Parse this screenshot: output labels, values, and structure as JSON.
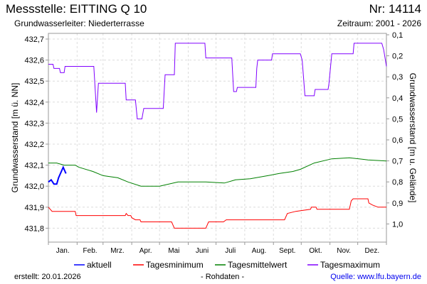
{
  "header": {
    "title": "Messstelle: EITTING Q 10",
    "number": "Nr: 14114",
    "aquifer": "Grundwasserleiter:   Niederterrasse",
    "period": "Zeitraum: 2001 - 2026"
  },
  "footer": {
    "created": "erstellt:  20.01.2026",
    "raw": "- Rohdaten -",
    "source": "Quelle: www.lfu.bayern.de"
  },
  "chart_data": {
    "type": "line",
    "title": "Messstelle: EITTING Q 10",
    "xlabel": "",
    "ylabel": "Grundwasserstand [m ü. NN]",
    "y2label": "Grundwasserstand [m u. Gelände]",
    "x_unit": "day of year",
    "xlim": [
      0,
      365
    ],
    "ylim": [
      431.73,
      432.73
    ],
    "y_ticks": [
      "432,7",
      "432,6",
      "432,5",
      "432,4",
      "432,3",
      "432,2",
      "432,1",
      "432,0",
      "431,9",
      "431,8"
    ],
    "y_tick_values": [
      432.7,
      432.6,
      432.5,
      432.4,
      432.3,
      432.2,
      432.1,
      432.0,
      431.9,
      431.8
    ],
    "y2_ticks": [
      "0,1",
      "0,2",
      "0,3",
      "0,4",
      "0,5",
      "0,6",
      "0,7",
      "0,8",
      "0,9",
      "1,0"
    ],
    "y2_tick_values": [
      0.1,
      0.2,
      0.3,
      0.4,
      0.5,
      0.6,
      0.7,
      0.8,
      0.9,
      1.0
    ],
    "y2_reference_level": 432.82,
    "months": [
      "Jan.",
      "Feb.",
      "Mrz.",
      "Apr.",
      "Mai",
      "Juni",
      "Juli",
      "Aug.",
      "Sept.",
      "Okt.",
      "Nov.",
      "Dez."
    ],
    "month_starts": [
      0,
      31,
      59,
      90,
      120,
      151,
      181,
      212,
      243,
      273,
      304,
      334,
      365
    ],
    "grid": true,
    "legend_position": "bottom",
    "series": [
      {
        "name": "aktuell",
        "color": "#0000ff",
        "width": 2,
        "points": [
          [
            0,
            432.02
          ],
          [
            3,
            432.03
          ],
          [
            6,
            432.01
          ],
          [
            9,
            432.01
          ],
          [
            11,
            432.04
          ],
          [
            12,
            432.05
          ],
          [
            14,
            432.07
          ],
          [
            15,
            432.08
          ],
          [
            16,
            432.09
          ],
          [
            18,
            432.07
          ],
          [
            19,
            432.06
          ]
        ]
      },
      {
        "name": "Tagesminimum",
        "color": "#ff0000",
        "width": 1,
        "points": [
          [
            0,
            431.9
          ],
          [
            4,
            431.88
          ],
          [
            29,
            431.88
          ],
          [
            30,
            431.86
          ],
          [
            83,
            431.86
          ],
          [
            84,
            431.87
          ],
          [
            86,
            431.86
          ],
          [
            89,
            431.86
          ],
          [
            90,
            431.85
          ],
          [
            94,
            431.84
          ],
          [
            99,
            431.84
          ],
          [
            100,
            431.83
          ],
          [
            133,
            431.83
          ],
          [
            136,
            431.8
          ],
          [
            170,
            431.8
          ],
          [
            173,
            431.83
          ],
          [
            189,
            431.83
          ],
          [
            192,
            431.84
          ],
          [
            255,
            431.84
          ],
          [
            258,
            431.87
          ],
          [
            267,
            431.88
          ],
          [
            283,
            431.89
          ],
          [
            284,
            431.9
          ],
          [
            289,
            431.9
          ],
          [
            290,
            431.89
          ],
          [
            325,
            431.89
          ],
          [
            327,
            431.93
          ],
          [
            329,
            431.94
          ],
          [
            345,
            431.94
          ],
          [
            346,
            431.92
          ],
          [
            350,
            431.91
          ],
          [
            356,
            431.9
          ],
          [
            365,
            431.9
          ]
        ]
      },
      {
        "name": "Tagesmittelwert",
        "color": "#008000",
        "width": 1,
        "points": [
          [
            0,
            432.11
          ],
          [
            9,
            432.11
          ],
          [
            17,
            432.1
          ],
          [
            29,
            432.1
          ],
          [
            33,
            432.09
          ],
          [
            48,
            432.07
          ],
          [
            59,
            432.05
          ],
          [
            75,
            432.04
          ],
          [
            86,
            432.02
          ],
          [
            100,
            432.0
          ],
          [
            120,
            432.0
          ],
          [
            140,
            432.02
          ],
          [
            160,
            432.02
          ],
          [
            170,
            432.02
          ],
          [
            190,
            432.015
          ],
          [
            202,
            432.03
          ],
          [
            218,
            432.035
          ],
          [
            237,
            432.05
          ],
          [
            249,
            432.06
          ],
          [
            264,
            432.07
          ],
          [
            272,
            432.08
          ],
          [
            287,
            432.11
          ],
          [
            306,
            432.13
          ],
          [
            325,
            432.135
          ],
          [
            345,
            432.125
          ],
          [
            365,
            432.12
          ]
        ]
      },
      {
        "name": "Tagesmaximum",
        "color": "#8000ff",
        "width": 1,
        "points": [
          [
            0,
            432.58
          ],
          [
            5,
            432.58
          ],
          [
            6,
            432.56
          ],
          [
            12,
            432.56
          ],
          [
            13,
            432.54
          ],
          [
            17,
            432.54
          ],
          [
            18,
            432.57
          ],
          [
            49,
            432.57
          ],
          [
            52,
            432.35
          ],
          [
            54,
            432.49
          ],
          [
            83,
            432.49
          ],
          [
            84,
            432.41
          ],
          [
            94,
            432.41
          ],
          [
            96,
            432.32
          ],
          [
            101,
            432.32
          ],
          [
            103,
            432.37
          ],
          [
            124,
            432.37
          ],
          [
            126,
            432.53
          ],
          [
            136,
            432.53
          ],
          [
            137,
            432.68
          ],
          [
            169,
            432.68
          ],
          [
            170,
            432.61
          ],
          [
            198,
            432.61
          ],
          [
            200,
            432.45
          ],
          [
            203,
            432.45
          ],
          [
            204,
            432.47
          ],
          [
            224,
            432.47
          ],
          [
            225,
            432.56
          ],
          [
            226,
            432.6
          ],
          [
            241,
            432.6
          ],
          [
            242,
            432.63
          ],
          [
            272,
            432.63
          ],
          [
            274,
            432.6
          ],
          [
            277,
            432.43
          ],
          [
            287,
            432.43
          ],
          [
            288,
            432.46
          ],
          [
            302,
            432.46
          ],
          [
            303,
            432.49
          ],
          [
            306,
            432.63
          ],
          [
            329,
            432.63
          ],
          [
            330,
            432.68
          ],
          [
            360,
            432.68
          ],
          [
            362,
            432.65
          ],
          [
            365,
            432.57
          ]
        ]
      }
    ]
  }
}
